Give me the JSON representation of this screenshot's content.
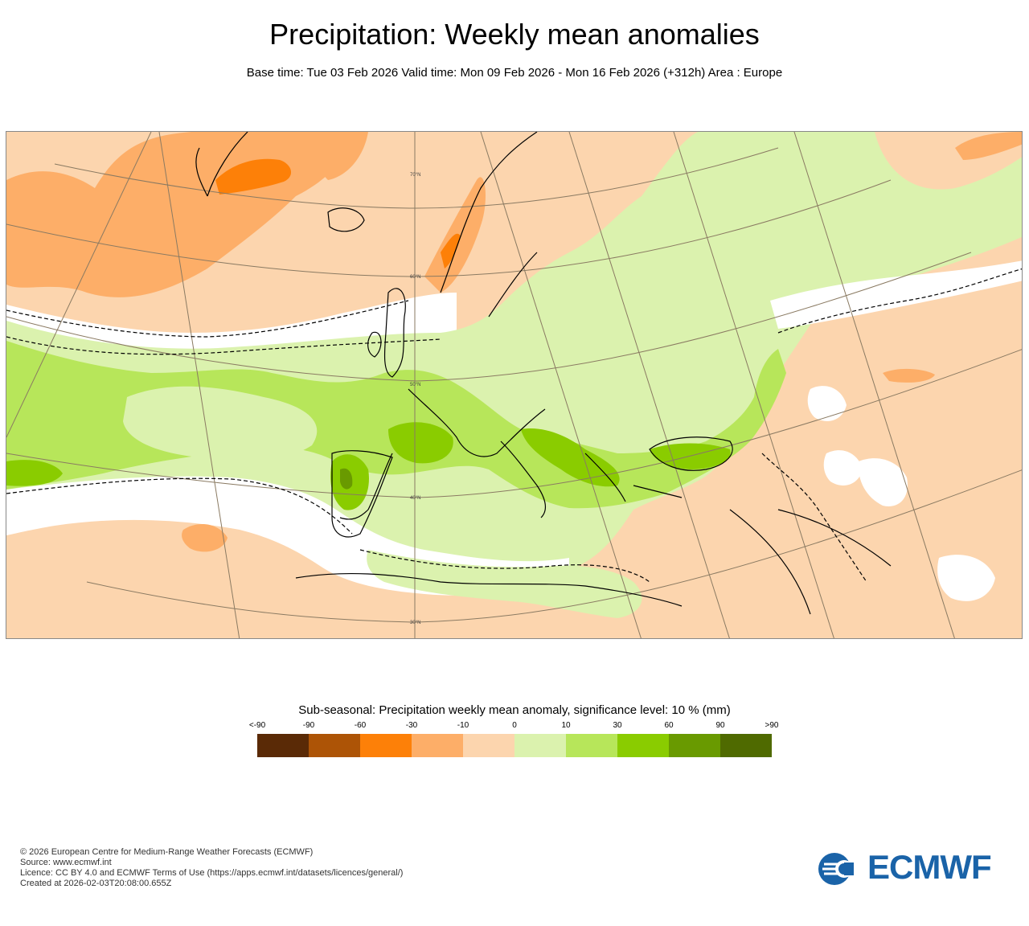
{
  "title": "Precipitation: Weekly mean anomalies",
  "subtitle": "Base time: Tue 03 Feb 2026 Valid time: Mon 09 Feb 2026 - Mon 16 Feb 2026 (+312h) Area : Europe",
  "map": {
    "lat_labels": [
      "70°N",
      "60°N",
      "50°N",
      "40°N",
      "30°N"
    ],
    "colors": {
      "background": "#fcd5ae",
      "dry_light": "#fcd5ae",
      "dry_medium": "#fdae68",
      "dry_strong": "#fd8008",
      "no_signal": "#ffffff",
      "wet_light": "#dbf2ae",
      "wet_medium": "#b7e65a",
      "wet_strong": "#8acc00",
      "wet_very_strong": "#699a00",
      "coast": "#000000",
      "graticule": "#8a7a62"
    }
  },
  "legend": {
    "title": "Sub-seasonal: Precipitation weekly mean anomaly, significance level: 10 % (mm)",
    "ticks": [
      "<-90",
      "-90",
      "-60",
      "-30",
      "-10",
      "0",
      "10",
      "30",
      "60",
      "90",
      ">90"
    ],
    "colors": [
      "#5a2a06",
      "#ad5406",
      "#fd8008",
      "#fdae68",
      "#fcd5ae",
      "#dbf2ae",
      "#b7e65a",
      "#8acc00",
      "#699a00",
      "#4f6a00"
    ]
  },
  "footer": {
    "line1": "© 2026 European Centre for Medium-Range Weather Forecasts (ECMWF)",
    "line2": "Source: www.ecmwf.int",
    "line3": "Licence: CC BY 4.0 and ECMWF Terms of Use (https://apps.ecmwf.int/datasets/licences/general/)",
    "line4": "Created at 2026-02-03T20:08:00.655Z"
  },
  "logo": {
    "text": "ECMWF",
    "icon": "ecmwf-logo-icon",
    "color": "#1a63a8"
  }
}
